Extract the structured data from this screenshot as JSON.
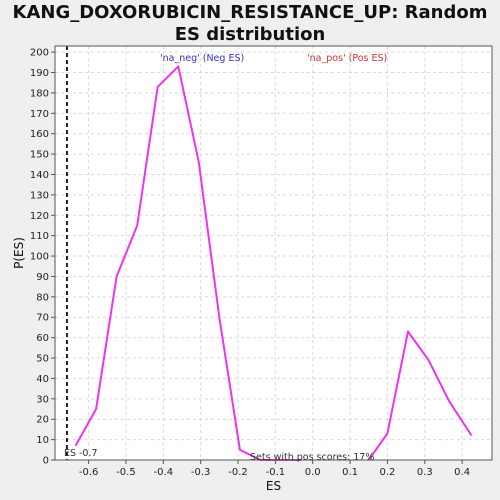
{
  "chart_data": {
    "type": "line",
    "title": "KANG_DOXORUBICIN_RESISTANCE_UP: Random ES distribution",
    "xlabel": "ES",
    "ylabel": "P(ES)",
    "xlim": [
      -0.69,
      0.48
    ],
    "ylim": [
      0,
      203
    ],
    "x_ticks": [
      -0.6,
      -0.5,
      -0.4,
      -0.3,
      -0.2,
      -0.1,
      0.0,
      0.1,
      0.2,
      0.3,
      0.4
    ],
    "x_tick_labels": [
      "-0.6",
      "-0.5",
      "-0.4",
      "-0.3",
      "-0.2",
      "-0.1",
      "0.0",
      "0.1",
      "0.2",
      "0.3",
      "0.4"
    ],
    "y_ticks": [
      0,
      10,
      20,
      30,
      40,
      50,
      60,
      70,
      80,
      90,
      100,
      110,
      120,
      130,
      140,
      150,
      160,
      170,
      180,
      190,
      200
    ],
    "grid": true,
    "series": [
      {
        "color": "#ee33ee",
        "segments": [
          [
            [
              -0.635,
              7
            ],
            [
              -0.58,
              25
            ],
            [
              -0.525,
              90
            ],
            [
              -0.47,
              115
            ],
            [
              -0.415,
              183
            ],
            [
              -0.36,
              193
            ],
            [
              -0.305,
              146
            ],
            [
              -0.25,
              70
            ],
            [
              -0.195,
              5
            ],
            [
              -0.14,
              0
            ],
            [
              -0.085,
              0
            ],
            [
              -0.03,
              0
            ]
          ],
          [
            [
              0.15,
              0
            ],
            [
              0.2,
              13
            ],
            [
              0.255,
              63
            ],
            [
              0.31,
              49
            ],
            [
              0.365,
              29
            ],
            [
              0.425,
              12
            ]
          ]
        ]
      }
    ],
    "es_marker": {
      "x": -0.658,
      "label": "ES -0.7"
    },
    "annotations": {
      "neg": {
        "text": "'na_neg' (Neg ES)",
        "color": "#3333cc"
      },
      "pos": {
        "text": "'na_pos' (Pos ES)",
        "color": "#cc3333"
      },
      "pos_scores": {
        "text": "Sets with pos scores: 17%",
        "color": "#333333"
      }
    }
  }
}
